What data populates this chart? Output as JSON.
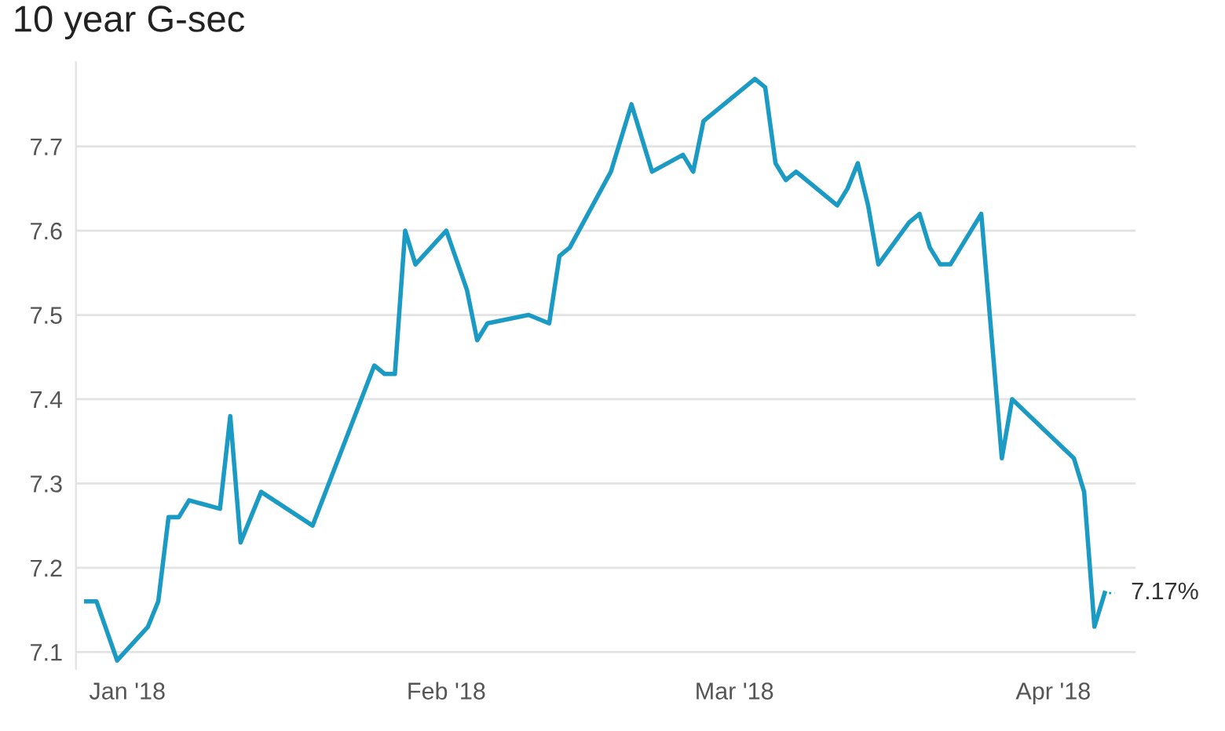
{
  "chart_data": {
    "type": "line",
    "title": "10 year G-sec",
    "x": [
      "2017-12-28",
      "2017-12-29",
      "2017-12-31",
      "2018-01-03",
      "2018-01-04",
      "2018-01-05",
      "2018-01-06",
      "2018-01-07",
      "2018-01-10",
      "2018-01-11",
      "2018-01-12",
      "2018-01-14",
      "2018-01-19",
      "2018-01-25",
      "2018-01-26",
      "2018-01-27",
      "2018-01-28",
      "2018-01-29",
      "2018-02-01",
      "2018-02-03",
      "2018-02-04",
      "2018-02-05",
      "2018-02-09",
      "2018-02-11",
      "2018-02-12",
      "2018-02-13",
      "2018-02-17",
      "2018-02-19",
      "2018-02-21",
      "2018-02-24",
      "2018-02-25",
      "2018-02-26",
      "2018-03-03",
      "2018-03-04",
      "2018-03-05",
      "2018-03-06",
      "2018-03-07",
      "2018-03-11",
      "2018-03-12",
      "2018-03-13",
      "2018-03-14",
      "2018-03-15",
      "2018-03-18",
      "2018-03-19",
      "2018-03-20",
      "2018-03-21",
      "2018-03-22",
      "2018-03-25",
      "2018-03-27",
      "2018-03-28",
      "2018-04-03",
      "2018-04-04",
      "2018-04-05",
      "2018-04-06"
    ],
    "series": [
      {
        "color": "#1b9ac4",
        "values": [
          7.16,
          7.16,
          7.09,
          7.13,
          7.16,
          7.26,
          7.26,
          7.28,
          7.27,
          7.38,
          7.23,
          7.29,
          7.25,
          7.44,
          7.43,
          7.43,
          7.6,
          7.56,
          7.6,
          7.53,
          7.47,
          7.49,
          7.5,
          7.49,
          7.57,
          7.58,
          7.67,
          7.75,
          7.67,
          7.69,
          7.67,
          7.73,
          7.78,
          7.77,
          7.68,
          7.66,
          7.67,
          7.63,
          7.65,
          7.68,
          7.63,
          7.56,
          7.61,
          7.62,
          7.58,
          7.56,
          7.56,
          7.62,
          7.33,
          7.4,
          7.33,
          7.29,
          7.13,
          7.17
        ]
      }
    ],
    "xlim": [
      "2017-12-27",
      "2018-04-09"
    ],
    "xticks": [
      {
        "value": "2018-01-01",
        "label": "Jan '18"
      },
      {
        "value": "2018-02-01",
        "label": "Feb '18"
      },
      {
        "value": "2018-03-01",
        "label": "Mar '18"
      },
      {
        "value": "2018-04-01",
        "label": "Apr '18"
      }
    ],
    "ylim": [
      7.08,
      7.8
    ],
    "yticks": [
      7.1,
      7.2,
      7.3,
      7.4,
      7.5,
      7.6,
      7.7
    ],
    "grid": "y",
    "marker": "none",
    "line_style": "solid",
    "annotations": [
      {
        "text": "7.17%",
        "x": "2018-04-06",
        "y": 7.17
      }
    ]
  }
}
